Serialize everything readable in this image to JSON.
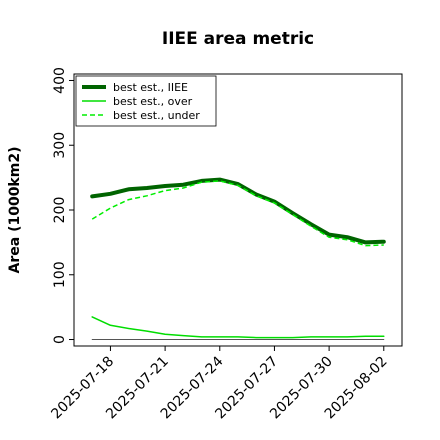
{
  "chart_data": {
    "type": "line",
    "title": "IIEE area metric",
    "xlabel": "",
    "ylabel": "Area (1000km2)",
    "ylim": [
      -10,
      410
    ],
    "yticks": [
      0,
      100,
      200,
      300,
      400
    ],
    "xlim": [
      "2025-07-16",
      "2025-08-03"
    ],
    "xticks": [
      "2025-07-18",
      "2025-07-21",
      "2025-07-24",
      "2025-07-27",
      "2025-07-30",
      "2025-08-02"
    ],
    "grid": false,
    "legend_position": "top-left",
    "x": [
      "2025-07-17",
      "2025-07-18",
      "2025-07-19",
      "2025-07-20",
      "2025-07-21",
      "2025-07-22",
      "2025-07-23",
      "2025-07-24",
      "2025-07-25",
      "2025-07-26",
      "2025-07-27",
      "2025-07-28",
      "2025-07-29",
      "2025-07-30",
      "2025-07-31",
      "2025-08-01",
      "2025-08-02"
    ],
    "series": [
      {
        "name": "best est., IIEE",
        "color": "#006400",
        "style": "solid",
        "width": 4,
        "values": [
          221,
          225,
          232,
          234,
          237,
          239,
          245,
          247,
          240,
          224,
          213,
          195,
          178,
          162,
          158,
          150,
          151
        ]
      },
      {
        "name": "best est., over",
        "color": "#00dd00",
        "style": "solid",
        "width": 1.5,
        "values": [
          35,
          22,
          17,
          13,
          8,
          6,
          4,
          4,
          4,
          3,
          3,
          3,
          4,
          4,
          4,
          5,
          5
        ]
      },
      {
        "name": "best est., under",
        "color": "#00ee00",
        "style": "dashed",
        "width": 1.5,
        "values": [
          186,
          203,
          216,
          222,
          230,
          234,
          243,
          245,
          238,
          222,
          211,
          193,
          175,
          158,
          154,
          145,
          146
        ]
      },
      {
        "name": "",
        "color": "#555555",
        "style": "solid",
        "width": 1,
        "values": [
          0,
          0,
          0,
          0,
          0,
          0,
          0,
          0,
          0,
          0,
          0,
          0,
          0,
          0,
          0,
          0,
          0
        ]
      }
    ]
  }
}
